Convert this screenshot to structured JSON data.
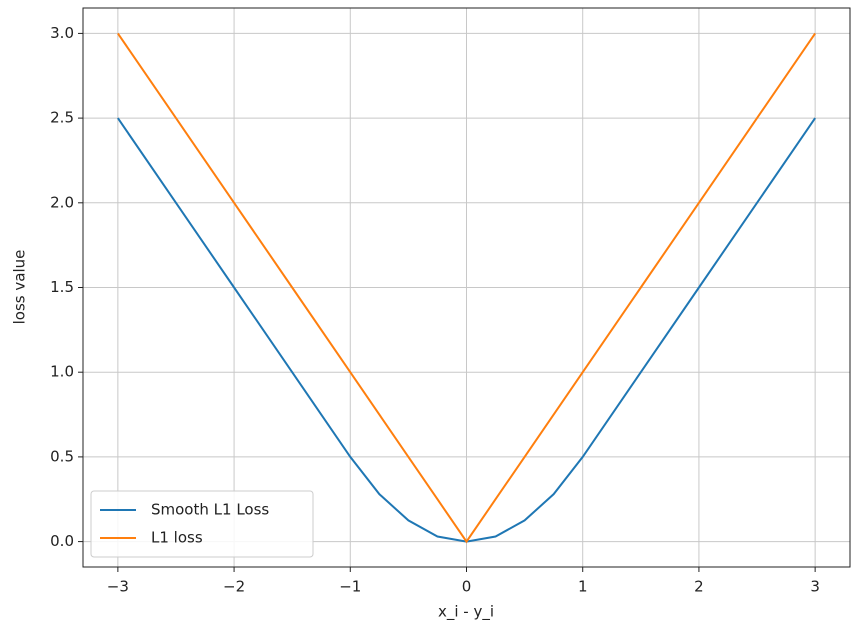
{
  "chart_data": {
    "type": "line",
    "xlabel": "x_i - y_i",
    "ylabel": "loss value",
    "x": [
      -3,
      -2.5,
      -2,
      -1.5,
      -1,
      -0.75,
      -0.5,
      -0.25,
      0,
      0.25,
      0.5,
      0.75,
      1,
      1.5,
      2,
      2.5,
      3
    ],
    "series": [
      {
        "name": "Smooth L1 Loss",
        "color": "#1f77b4",
        "values": [
          2.5,
          2.0,
          1.5,
          1.0,
          0.5,
          0.28,
          0.125,
          0.03,
          0,
          0.03,
          0.125,
          0.28,
          0.5,
          1.0,
          1.5,
          2.0,
          2.5
        ]
      },
      {
        "name": "L1 loss",
        "color": "#ff7f0e",
        "values": [
          3,
          2.5,
          2,
          1.5,
          1,
          0.75,
          0.5,
          0.25,
          0,
          0.25,
          0.5,
          0.75,
          1,
          1.5,
          2,
          2.5,
          3
        ]
      }
    ],
    "xlim": [
      -3.3,
      3.3
    ],
    "ylim": [
      -0.15,
      3.15
    ],
    "xticks": [
      {
        "value": -3,
        "label": "−3"
      },
      {
        "value": -2,
        "label": "−2"
      },
      {
        "value": -1,
        "label": "−1"
      },
      0,
      1,
      2,
      3
    ],
    "yticks": [
      {
        "value": 0,
        "label": "0.0"
      },
      0.5,
      {
        "value": 1,
        "label": "1.0"
      },
      1.5,
      {
        "value": 2,
        "label": "2.0"
      },
      2.5,
      {
        "value": 3,
        "label": "3.0"
      }
    ],
    "grid": true,
    "legend": "lower left"
  }
}
